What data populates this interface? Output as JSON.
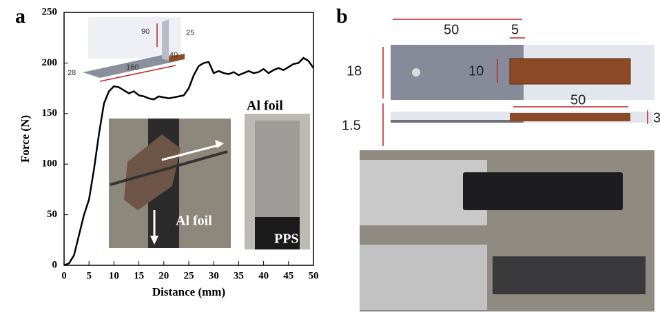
{
  "chart_data": {
    "type": "line",
    "xlabel": "Distance (mm)",
    "ylabel": "Force (N)",
    "x": [
      0,
      1,
      2,
      3,
      4,
      5,
      6,
      7,
      8,
      9,
      10,
      11,
      12,
      13,
      14,
      15,
      16,
      17,
      18,
      19,
      20,
      21,
      22,
      23,
      24,
      25,
      26,
      27,
      28,
      29,
      30,
      31,
      32,
      33,
      34,
      35,
      36,
      37,
      38,
      39,
      40,
      41,
      42,
      43,
      44,
      45,
      46,
      47,
      48,
      49,
      50
    ],
    "values": [
      0,
      2,
      10,
      30,
      50,
      65,
      95,
      130,
      160,
      172,
      177,
      176,
      173,
      170,
      172,
      168,
      167,
      165,
      164,
      167,
      166,
      165,
      166,
      167,
      168,
      175,
      188,
      197,
      200,
      201,
      190,
      192,
      190,
      189,
      191,
      188,
      190,
      192,
      190,
      191,
      194,
      190,
      193,
      195,
      193,
      196,
      199,
      200,
      205,
      202,
      195
    ],
    "color": "#000000",
    "xlim": [
      0,
      50
    ],
    "xticks": [
      0,
      5,
      10,
      15,
      20,
      25,
      30,
      35,
      40,
      45,
      50
    ],
    "ylim": [
      0,
      250
    ],
    "yticks": [
      0,
      50,
      100,
      150,
      200,
      250
    ]
  },
  "panels": {
    "a": "a",
    "b": "b"
  },
  "cad_inset": {
    "dims": [
      "90",
      "25",
      "40",
      "160",
      "28"
    ]
  },
  "photo_labels": {
    "left": "Al foil",
    "right_top": "Al foil",
    "right_bottom": "PPS"
  },
  "diagram": {
    "dims": [
      "50",
      "5",
      "18",
      "10",
      "50",
      "1.5",
      "3"
    ]
  }
}
